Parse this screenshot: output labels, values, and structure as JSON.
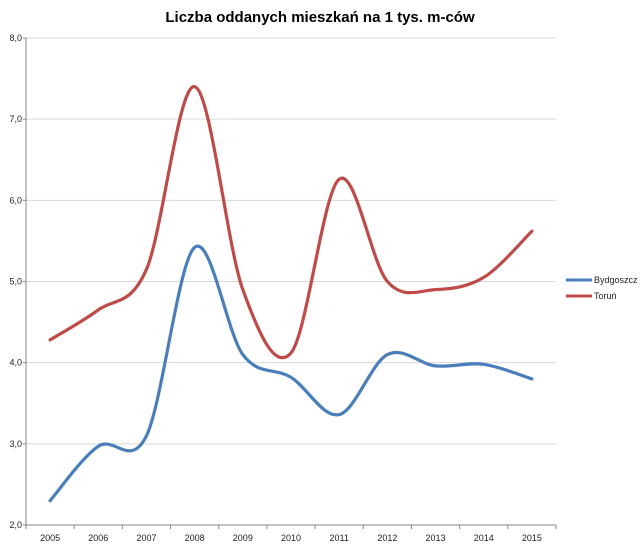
{
  "chart_data": {
    "type": "line",
    "title": "Liczba oddanych mieszkań na 1 tys. m-ców",
    "x": [
      "2005",
      "2006",
      "2007",
      "2008",
      "2009",
      "2010",
      "2011",
      "2012",
      "2013",
      "2014",
      "2015"
    ],
    "series": [
      {
        "name": "Bydgoszcz",
        "color": "#4a7ebb",
        "values": [
          2.3,
          2.97,
          3.1,
          5.42,
          4.1,
          3.82,
          3.36,
          4.1,
          3.96,
          3.98,
          3.8
        ]
      },
      {
        "name": "Toruń",
        "color": "#be4b48",
        "values": [
          4.28,
          4.65,
          5.15,
          7.4,
          4.9,
          4.12,
          6.26,
          5.0,
          4.9,
          5.05,
          5.62
        ]
      }
    ],
    "ylim": [
      2.0,
      8.0
    ],
    "yticks": [
      "2,0",
      "3,0",
      "4,0",
      "5,0",
      "6,0",
      "7,0",
      "8,0"
    ],
    "grid": true,
    "legend": "right"
  }
}
